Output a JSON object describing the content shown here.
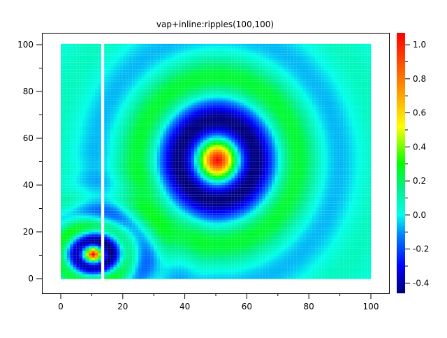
{
  "chart_data": {
    "type": "heatmap",
    "title": "vap+inline:ripples(100,100)",
    "xlabel": "",
    "ylabel": "",
    "xlim": [
      -6,
      106
    ],
    "ylim": [
      -6,
      105
    ],
    "x_ticks": [
      "0",
      "20",
      "40",
      "60",
      "80",
      "100"
    ],
    "y_ticks": [
      "0",
      "20",
      "40",
      "60",
      "80",
      "100"
    ],
    "grid": false,
    "x_range": [
      0,
      99
    ],
    "y_range": [
      0,
      99
    ],
    "missing_columns_x": [
      13
    ],
    "ripples": [
      {
        "center": [
          50,
          50
        ],
        "peak": 1.05,
        "ring_min": -0.45
      },
      {
        "center": [
          10,
          10
        ],
        "peak": 1.0,
        "ring_min": -0.45
      }
    ],
    "colorbar": {
      "range": [
        -0.46,
        1.07
      ],
      "ticks": [
        "-0.4",
        "-0.2",
        "0.0",
        "0.2",
        "0.4",
        "0.6",
        "0.8",
        "1.0"
      ],
      "placement": "right",
      "colormap": [
        [
          -0.46,
          "#00007a"
        ],
        [
          -0.3,
          "#0000ff"
        ],
        [
          -0.12,
          "#0080ff"
        ],
        [
          0.0,
          "#00ffea"
        ],
        [
          0.15,
          "#00f090"
        ],
        [
          0.3,
          "#00ff00"
        ],
        [
          0.45,
          "#b0ff00"
        ],
        [
          0.52,
          "#ffff00"
        ],
        [
          0.68,
          "#ffb000"
        ],
        [
          0.85,
          "#ff6000"
        ],
        [
          1.07,
          "#ff0000"
        ]
      ]
    }
  }
}
